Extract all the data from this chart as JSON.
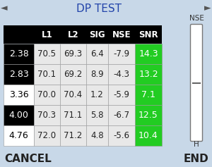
{
  "title": "DP TEST",
  "bg_color": "#c8d8e8",
  "header_bg": "#000000",
  "header_fg": "#ffffff",
  "col_headers": [
    "",
    "L1",
    "L2",
    "SIG",
    "NSE",
    "SNR"
  ],
  "rows": [
    {
      "freq": "2.38",
      "L1": "70.5",
      "L2": "69.3",
      "SIG": "6.4",
      "NSE": "-7.9",
      "SNR": "14.3",
      "freq_bg": "#000000",
      "freq_fg": "#ffffff"
    },
    {
      "freq": "2.83",
      "L1": "70.1",
      "L2": "69.2",
      "SIG": "8.9",
      "NSE": "-4.3",
      "SNR": "13.2",
      "freq_bg": "#000000",
      "freq_fg": "#ffffff"
    },
    {
      "freq": "3.36",
      "L1": "70.0",
      "L2": "70.4",
      "SIG": "1.2",
      "NSE": "-5.9",
      "SNR": "7.1",
      "freq_bg": "#ffffff",
      "freq_fg": "#000000"
    },
    {
      "freq": "4.00",
      "L1": "70.3",
      "L2": "71.1",
      "SIG": "5.8",
      "NSE": "-6.7",
      "SNR": "12.5",
      "freq_bg": "#000000",
      "freq_fg": "#ffffff"
    },
    {
      "freq": "4.76",
      "L1": "72.0",
      "L2": "71.2",
      "SIG": "4.8",
      "NSE": "-5.6",
      "SNR": "10.4",
      "freq_bg": "#ffffff",
      "freq_fg": "#000000"
    }
  ],
  "snr_bg": "#22cc22",
  "snr_fg": "#ffffff",
  "cell_bg": "#e8e8e8",
  "cell_fg": "#222222",
  "cancel_text": "CANCEL",
  "end_text": "END",
  "nse_label": "NSE",
  "h_label": "H",
  "left_arrow": "◄",
  "right_arrow": "►",
  "scrollbar_color": "#ffffff",
  "fig_w": 3.0,
  "fig_h": 2.37,
  "dpi": 100
}
